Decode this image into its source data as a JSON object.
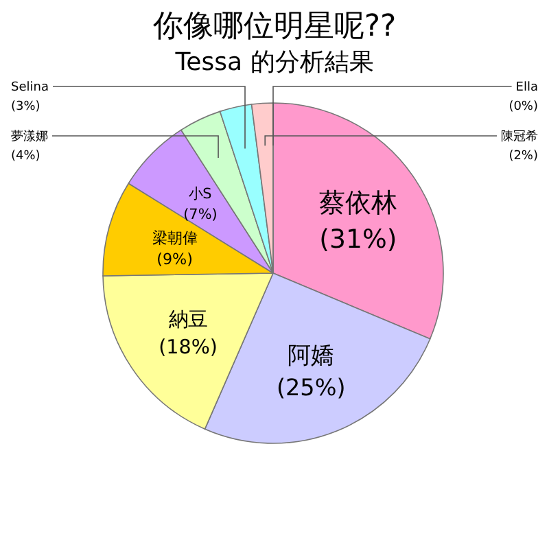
{
  "chart_data": {
    "type": "pie",
    "title": "你像哪位明星呢??",
    "subtitle": "Tessa 的分析結果",
    "categories": [
      "蔡依林",
      "阿嬌",
      "納豆",
      "梁朝偉",
      "小S",
      "夢漾娜",
      "Selina",
      "陳冠希",
      "Ella"
    ],
    "values": [
      31,
      25,
      18,
      9,
      7,
      4,
      3,
      2,
      0
    ],
    "value_labels": [
      "(31%)",
      "(25%)",
      "(18%)",
      "(9%)",
      "(7%)",
      "(4%)",
      "(3%)",
      "(2%)",
      "(0%)"
    ],
    "colors": [
      "#ff99cc",
      "#ccccff",
      "#ffff99",
      "#ffcc00",
      "#cc99ff",
      "#ccffcc",
      "#99ffff",
      "#ffcccc",
      "#cccccc"
    ]
  }
}
